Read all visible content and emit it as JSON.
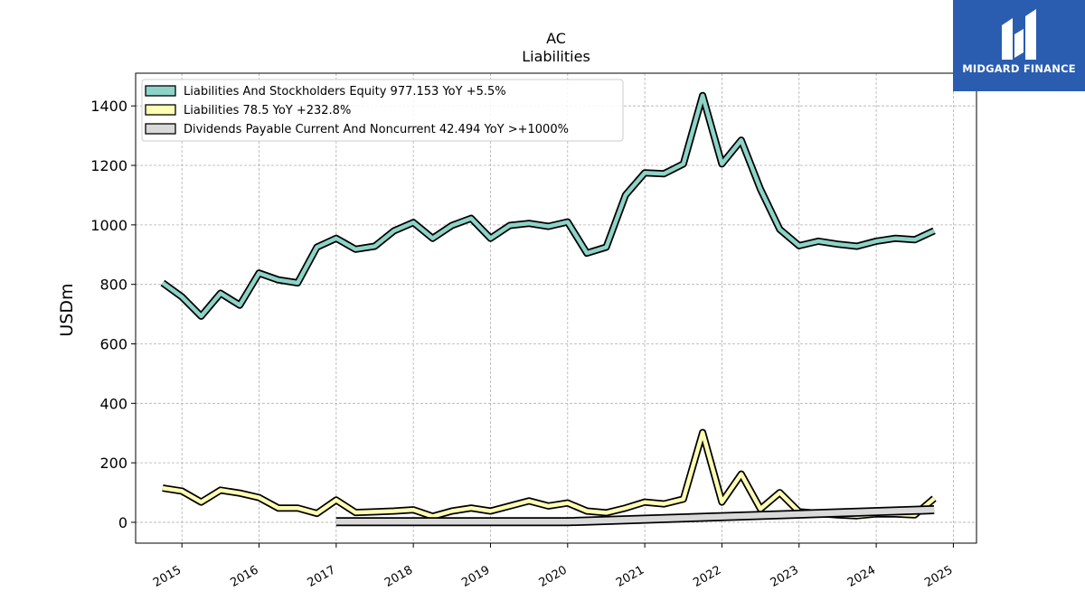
{
  "brand": {
    "name": "MIDGARD FINANCE",
    "bg_color": "#2a5db0"
  },
  "chart_data": {
    "type": "line",
    "title": "AC",
    "subtitle": "Liabilities",
    "ylabel": "USDm",
    "xlabel": "",
    "ylim": [
      -70,
      1510
    ],
    "xlim": [
      2014.4,
      2025.3
    ],
    "yticks": [
      0,
      200,
      400,
      600,
      800,
      1000,
      1200,
      1400
    ],
    "xticks": [
      2015,
      2016,
      2017,
      2018,
      2019,
      2020,
      2021,
      2022,
      2023,
      2024,
      2025
    ],
    "grid": true,
    "legend_position": "top-left",
    "series": [
      {
        "name": "Liabilities And Stockholders Equity  977.153 YoY +5.5%",
        "color": "#8dd3c7",
        "x": [
          2014.75,
          2015.0,
          2015.25,
          2015.5,
          2015.75,
          2016.0,
          2016.25,
          2016.5,
          2016.75,
          2017.0,
          2017.25,
          2017.5,
          2017.75,
          2018.0,
          2018.25,
          2018.5,
          2018.75,
          2019.0,
          2019.25,
          2019.5,
          2019.75,
          2020.0,
          2020.25,
          2020.5,
          2020.75,
          2021.0,
          2021.25,
          2021.5,
          2021.75,
          2022.0,
          2022.25,
          2022.5,
          2022.75,
          2023.0,
          2023.25,
          2023.5,
          2023.75,
          2024.0,
          2024.25,
          2024.5,
          2024.75
        ],
        "values": [
          805,
          758,
          693,
          770,
          730,
          838,
          815,
          805,
          925,
          955,
          918,
          928,
          980,
          1008,
          955,
          998,
          1022,
          955,
          998,
          1005,
          995,
          1010,
          905,
          925,
          1100,
          1175,
          1172,
          1205,
          1435,
          1205,
          1285,
          1120,
          985,
          930,
          945,
          935,
          928,
          945,
          955,
          950,
          980
        ]
      },
      {
        "name": "Liabilities  78.5 YoY +232.8%",
        "color": "#ffffb3",
        "x": [
          2014.75,
          2015.0,
          2015.25,
          2015.5,
          2015.75,
          2016.0,
          2016.25,
          2016.5,
          2016.75,
          2017.0,
          2017.25,
          2017.5,
          2017.75,
          2018.0,
          2018.25,
          2018.5,
          2018.75,
          2019.0,
          2019.25,
          2019.5,
          2019.75,
          2020.0,
          2020.25,
          2020.5,
          2020.75,
          2021.0,
          2021.25,
          2021.5,
          2021.75,
          2022.0,
          2022.25,
          2022.5,
          2022.75,
          2023.0,
          2023.25,
          2023.5,
          2023.75,
          2024.0,
          2024.25,
          2024.5,
          2024.75
        ],
        "values": [
          115,
          105,
          68,
          108,
          98,
          83,
          48,
          48,
          30,
          75,
          33,
          35,
          38,
          42,
          20,
          38,
          48,
          38,
          55,
          72,
          55,
          65,
          38,
          32,
          48,
          68,
          62,
          78,
          302,
          68,
          162,
          45,
          100,
          35,
          30,
          25,
          22,
          28,
          28,
          25,
          80
        ]
      },
      {
        "name": "Dividends Payable Current And Noncurrent  42.494 YoY >+1000%",
        "color": "#d9d9d9",
        "x": [
          2017.0,
          2020.0,
          2024.75
        ],
        "values": [
          2,
          2,
          42.494
        ]
      }
    ]
  }
}
